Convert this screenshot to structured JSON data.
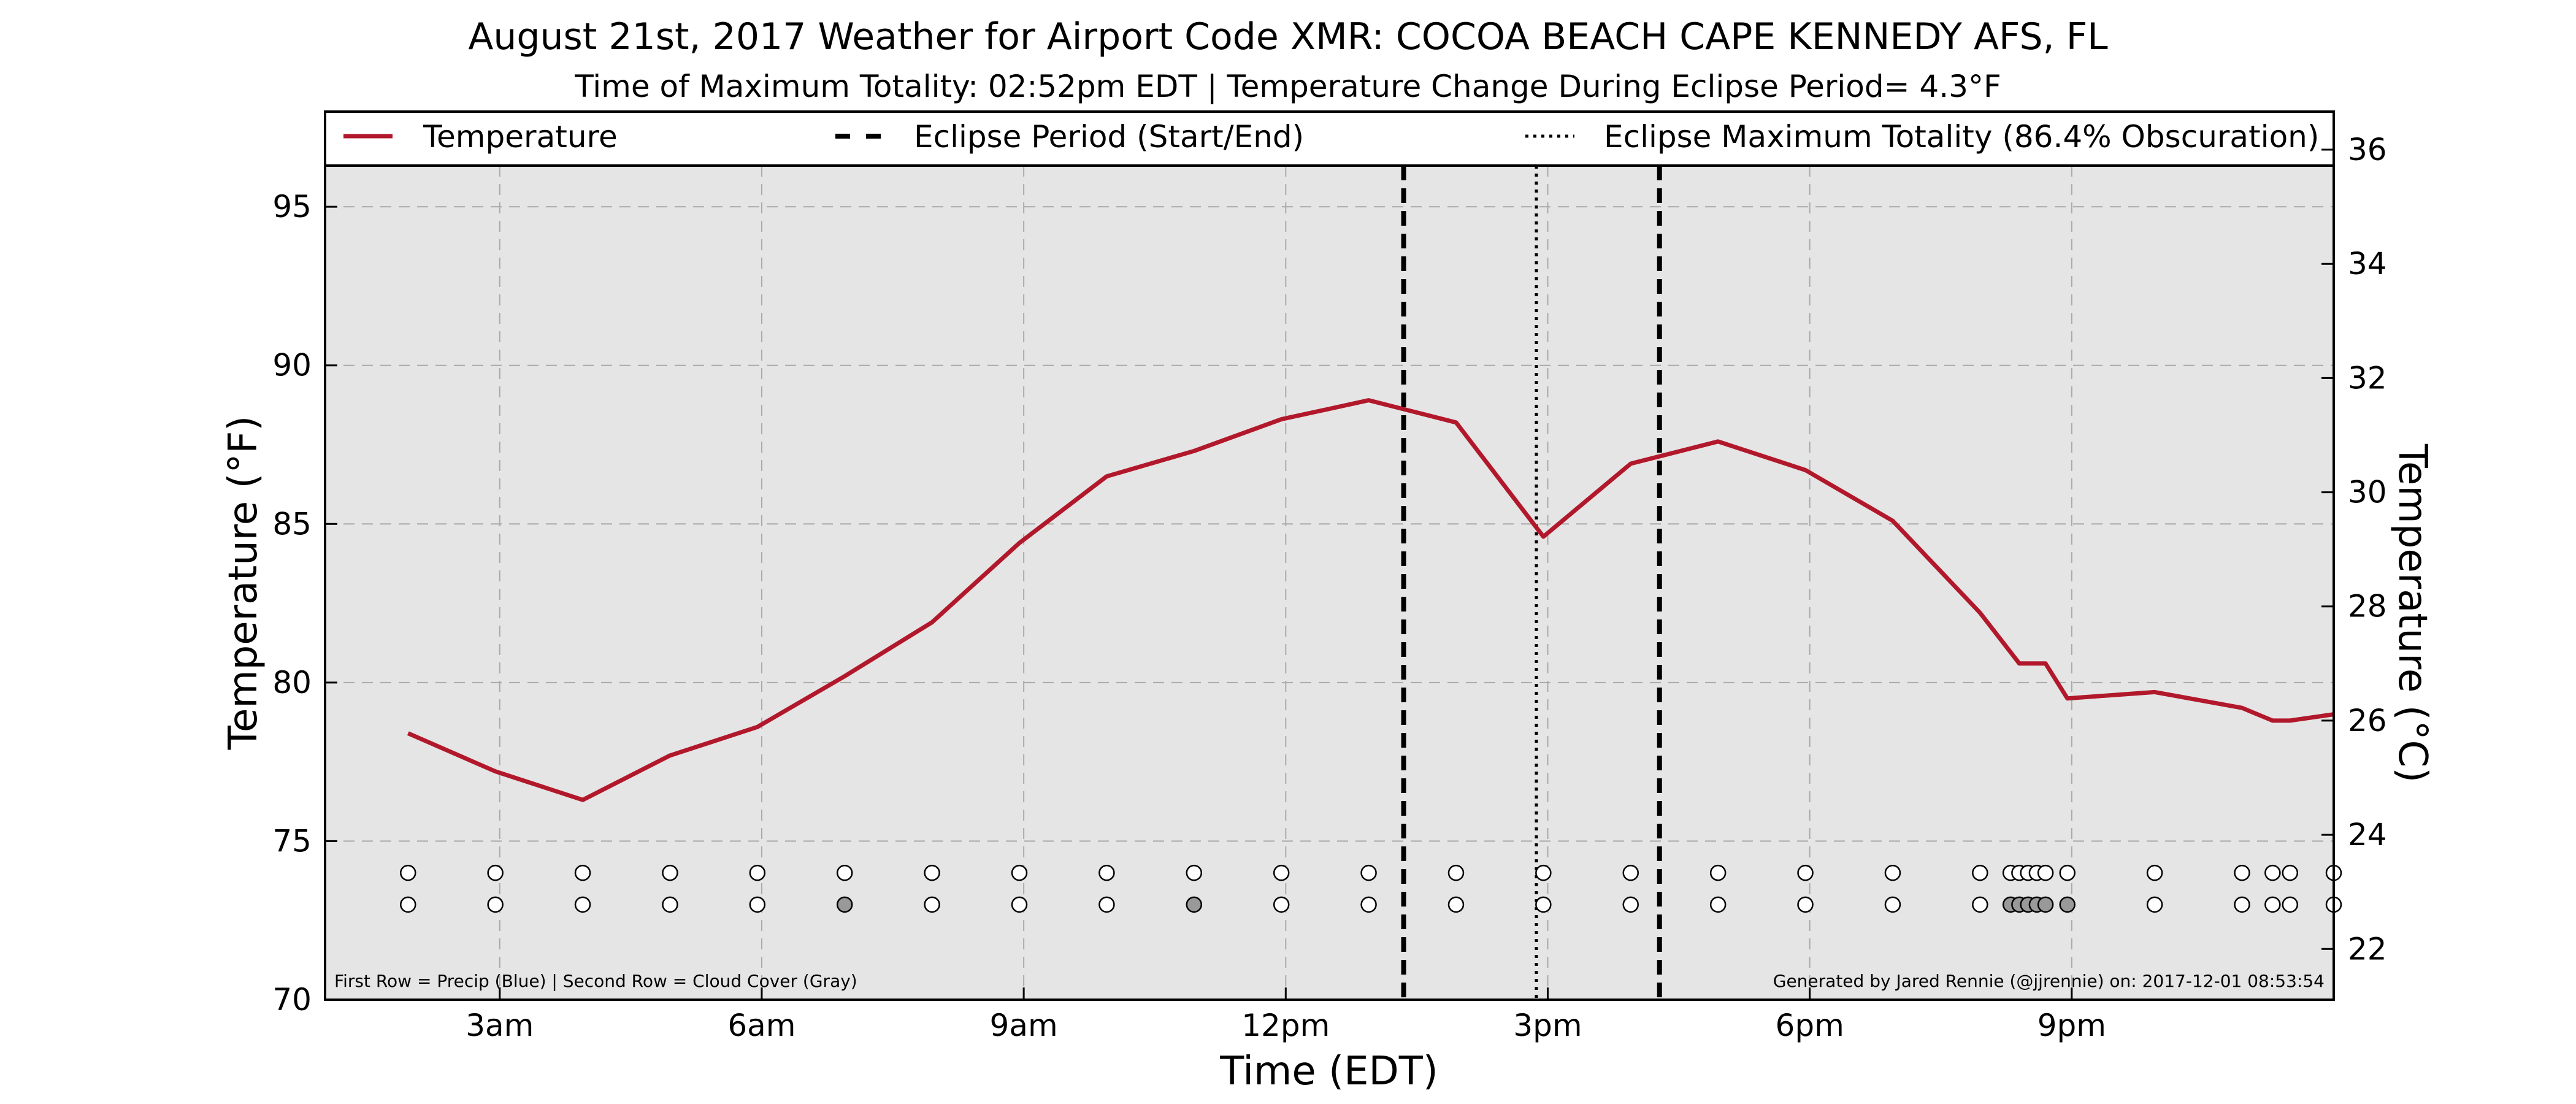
{
  "chart_data": {
    "type": "line",
    "title": "August 21st, 2017 Weather for Airport Code XMR: COCOA BEACH CAPE KENNEDY AFS, FL",
    "subtitle": "Time of Maximum Totality: 02:52pm EDT | Temperature Change During Eclipse Period= 4.3°F",
    "xlabel": "Time (EDT)",
    "ylabel": "Temperature (°F)",
    "ylabel_right": "Temperature (°C)",
    "xlim": [
      1.0,
      24.0
    ],
    "ylim": [
      70,
      98
    ],
    "ylim_right_c": [
      21.1111,
      36.6667
    ],
    "x_ticks": [
      3,
      6,
      9,
      12,
      15,
      18,
      21
    ],
    "x_tick_labels": [
      "3am",
      "6am",
      "9am",
      "12pm",
      "3pm",
      "6pm",
      "9pm"
    ],
    "y_ticks": [
      70,
      75,
      80,
      85,
      90,
      95
    ],
    "y_tick_labels": [
      "70",
      "75",
      "80",
      "85",
      "90",
      "95"
    ],
    "y_ticks_right": [
      22,
      24,
      26,
      28,
      30,
      32,
      34,
      36
    ],
    "y_tick_labels_right": [
      "22",
      "24",
      "26",
      "28",
      "30",
      "32",
      "34",
      "36"
    ],
    "grid": true,
    "legend_position": "top",
    "series": [
      {
        "name": "Temperature",
        "color": "#b2182b",
        "x": [
          1.95,
          2.95,
          3.95,
          4.95,
          5.95,
          6.95,
          7.95,
          8.95,
          9.95,
          10.95,
          11.95,
          12.95,
          13.95,
          14.95,
          15.95,
          16.95,
          17.95,
          18.95,
          19.95,
          20.4,
          20.7,
          20.95,
          21.95,
          22.95,
          23.3,
          23.5,
          24.0
        ],
        "y": [
          78.4,
          77.2,
          76.3,
          77.7,
          78.6,
          80.2,
          81.9,
          84.4,
          86.5,
          87.3,
          88.3,
          88.9,
          88.2,
          84.6,
          86.9,
          87.6,
          86.7,
          85.1,
          82.2,
          80.6,
          80.6,
          79.5,
          79.7,
          79.2,
          78.8,
          78.8,
          79.0
        ]
      }
    ],
    "eclipse_start": 13.35,
    "eclipse_end": 16.28,
    "eclipse_max": 14.87,
    "legend": [
      {
        "label": "Temperature",
        "style": "solid",
        "color": "#b2182b"
      },
      {
        "label": "Eclipse Period (Start/End)",
        "style": "dashed",
        "color": "#000000"
      },
      {
        "label": "Eclipse Maximum Totality (86.4% Obscuration)",
        "style": "dotted",
        "color": "#000000"
      }
    ],
    "precip_row": {
      "y": 74,
      "x": [
        1.95,
        2.95,
        3.95,
        4.95,
        5.95,
        6.95,
        7.95,
        8.95,
        9.95,
        10.95,
        11.95,
        12.95,
        13.95,
        14.95,
        15.95,
        16.95,
        17.95,
        18.95,
        19.95,
        20.3,
        20.4,
        20.5,
        20.6,
        20.7,
        20.95,
        21.95,
        22.95,
        23.3,
        23.5,
        24.0
      ],
      "fill": [
        "#ffffff",
        "#ffffff",
        "#ffffff",
        "#ffffff",
        "#ffffff",
        "#ffffff",
        "#ffffff",
        "#ffffff",
        "#ffffff",
        "#ffffff",
        "#ffffff",
        "#ffffff",
        "#ffffff",
        "#ffffff",
        "#ffffff",
        "#ffffff",
        "#ffffff",
        "#ffffff",
        "#ffffff",
        "#ffffff",
        "#ffffff",
        "#ffffff",
        "#ffffff",
        "#ffffff",
        "#ffffff",
        "#ffffff",
        "#ffffff",
        "#ffffff",
        "#ffffff",
        "#ffffff"
      ]
    },
    "cloud_row": {
      "y": 73,
      "x": [
        1.95,
        2.95,
        3.95,
        4.95,
        5.95,
        6.95,
        7.95,
        8.95,
        9.95,
        10.95,
        11.95,
        12.95,
        13.95,
        14.95,
        15.95,
        16.95,
        17.95,
        18.95,
        19.95,
        20.3,
        20.4,
        20.5,
        20.6,
        20.7,
        20.95,
        21.95,
        22.95,
        23.3,
        23.5,
        24.0
      ],
      "fill": [
        "#ffffff",
        "#ffffff",
        "#ffffff",
        "#ffffff",
        "#ffffff",
        "#999999",
        "#ffffff",
        "#ffffff",
        "#ffffff",
        "#999999",
        "#ffffff",
        "#ffffff",
        "#ffffff",
        "#ffffff",
        "#ffffff",
        "#ffffff",
        "#ffffff",
        "#ffffff",
        "#ffffff",
        "#999999",
        "#999999",
        "#999999",
        "#999999",
        "#999999",
        "#999999",
        "#ffffff",
        "#ffffff",
        "#ffffff",
        "#ffffff",
        "#ffffff"
      ]
    },
    "note_left": "First Row = Precip (Blue) | Second Row = Cloud Cover (Gray)",
    "note_right": "Generated by Jared Rennie (@jjrennie) on: 2017-12-01 08:53:54",
    "colors": {
      "plot_bg": "#e5e5e5",
      "grid": "#aaaaaa",
      "line": "#b2182b"
    }
  }
}
